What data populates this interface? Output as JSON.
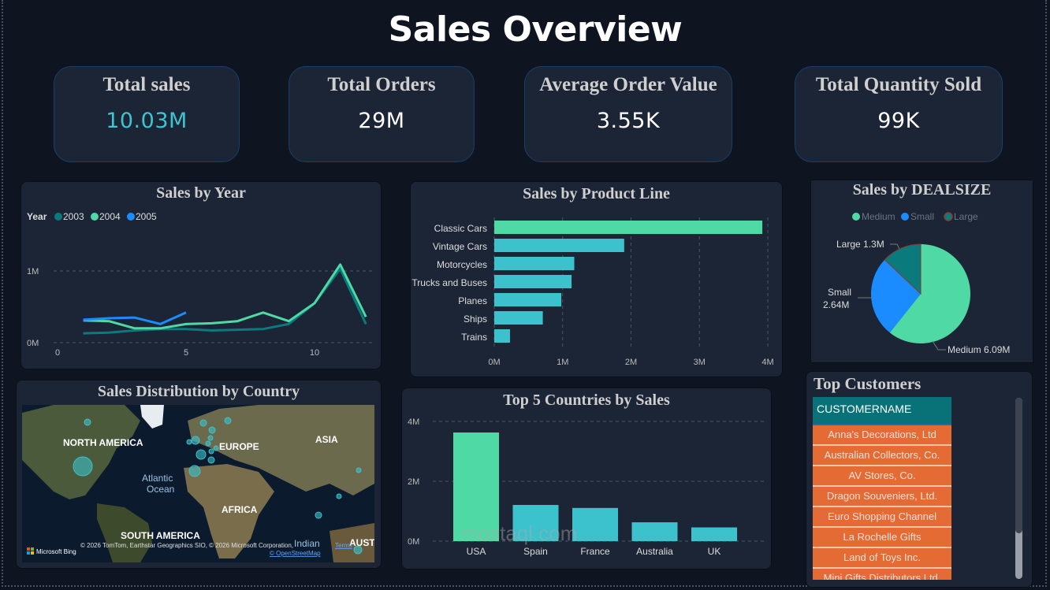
{
  "page": {
    "title": "Sales Overview",
    "watermark": "mostaql.com"
  },
  "kpis": [
    {
      "label": "Total sales",
      "value": "10.03M",
      "color": "#3ec5cf"
    },
    {
      "label": "Total Orders",
      "value": "29M",
      "color": "#ffffff"
    },
    {
      "label": "Average Order Value",
      "value": "3.55K",
      "color": "#ffffff"
    },
    {
      "label": "Total Quantity Sold",
      "value": "99K",
      "color": "#ffffff"
    }
  ],
  "colors": {
    "teal_dark": "#0a7a7d",
    "green": "#4fd9a5",
    "blue": "#1a8cff",
    "cyan": "#3cc2cc",
    "orange": "#e56b35"
  },
  "panels": {
    "sales_by_year": "Sales by Year",
    "sales_by_product_line": "Sales by Product Line",
    "sales_by_dealsize": "Sales by DEALSIZE",
    "sales_distribution": "Sales Distribution by Country",
    "top5_countries": "Top 5 Countries by Sales",
    "top_customers": "Top Customers"
  },
  "map": {
    "labels": [
      "NORTH AMERICA",
      "EUROPE",
      "ASIA",
      "Atlantic",
      "Ocean",
      "AFRICA",
      "SOUTH AMERICA",
      "Indian",
      "AUST"
    ],
    "attribution": "© 2026 TomTom, Earthstar Geographics SIO, © 2026 Microsoft Corporation,",
    "terms": "Terms",
    "osm": "© OpenStreetMap",
    "bing": "Microsoft Bing"
  },
  "table": {
    "header": "CUSTOMERNAME",
    "rows": [
      "Anna's Decorations, Ltd",
      "Australian Collectors, Co.",
      "AV Stores, Co.",
      "Dragon Souveniers, Ltd.",
      "Euro Shopping Channel",
      "La Rochelle Gifts",
      "Land of Toys Inc.",
      "Mini Gifts Distributors Ltd."
    ]
  },
  "chart_data": [
    {
      "type": "line",
      "title": "Sales by Year",
      "legend_title": "Year",
      "legend_position": "top-left",
      "xlabel": "",
      "ylabel": "",
      "xlim": [
        0,
        12
      ],
      "ylim": [
        0,
        1.2
      ],
      "x_ticks": [
        "0",
        "5",
        "10"
      ],
      "y_ticks": [
        "0M",
        "1M"
      ],
      "grid": true,
      "series": [
        {
          "name": "2003",
          "x": [
            1,
            2,
            3,
            4,
            5,
            6,
            7,
            8,
            9,
            10,
            11,
            12
          ],
          "values": [
            0.13,
            0.14,
            0.17,
            0.19,
            0.19,
            0.17,
            0.18,
            0.19,
            0.26,
            0.55,
            1.03,
            0.26
          ]
        },
        {
          "name": "2004",
          "x": [
            1,
            2,
            3,
            4,
            5,
            6,
            7,
            8,
            9,
            10,
            11,
            12
          ],
          "values": [
            0.31,
            0.3,
            0.2,
            0.2,
            0.26,
            0.27,
            0.3,
            0.42,
            0.3,
            0.55,
            1.09,
            0.36
          ]
        },
        {
          "name": "2005",
          "x": [
            1,
            2,
            3,
            4,
            5
          ],
          "values": [
            0.32,
            0.34,
            0.35,
            0.26,
            0.42
          ]
        }
      ]
    },
    {
      "type": "bar",
      "orientation": "horizontal",
      "title": "Sales by Product Line",
      "categories": [
        "Classic Cars",
        "Vintage Cars",
        "Motorcycles",
        "Trucks and Buses",
        "Planes",
        "Ships",
        "Trains"
      ],
      "values": [
        3.92,
        1.9,
        1.17,
        1.13,
        0.98,
        0.71,
        0.23
      ],
      "x_ticks": [
        "0M",
        "1M",
        "2M",
        "3M",
        "4M"
      ],
      "xlim": [
        0,
        4
      ],
      "grid": true,
      "xlabel": "",
      "ylabel": ""
    },
    {
      "type": "pie",
      "title": "Sales by DEALSIZE",
      "legend_position": "top",
      "categories": [
        "Medium",
        "Small",
        "Large"
      ],
      "values": [
        6.09,
        2.64,
        1.3
      ],
      "data_labels": [
        "Medium 6.09M",
        "Small",
        "2.64M",
        "Large 1.3M"
      ]
    },
    {
      "type": "bar",
      "orientation": "vertical",
      "title": "Top 5 Countries by Sales",
      "categories": [
        "USA",
        "Spain",
        "France",
        "Australia",
        "UK"
      ],
      "values": [
        3.63,
        1.21,
        1.11,
        0.63,
        0.46
      ],
      "y_ticks": [
        "0M",
        "2M",
        "4M"
      ],
      "ylim": [
        0,
        4
      ],
      "grid": true,
      "xlabel": "",
      "ylabel": ""
    }
  ]
}
